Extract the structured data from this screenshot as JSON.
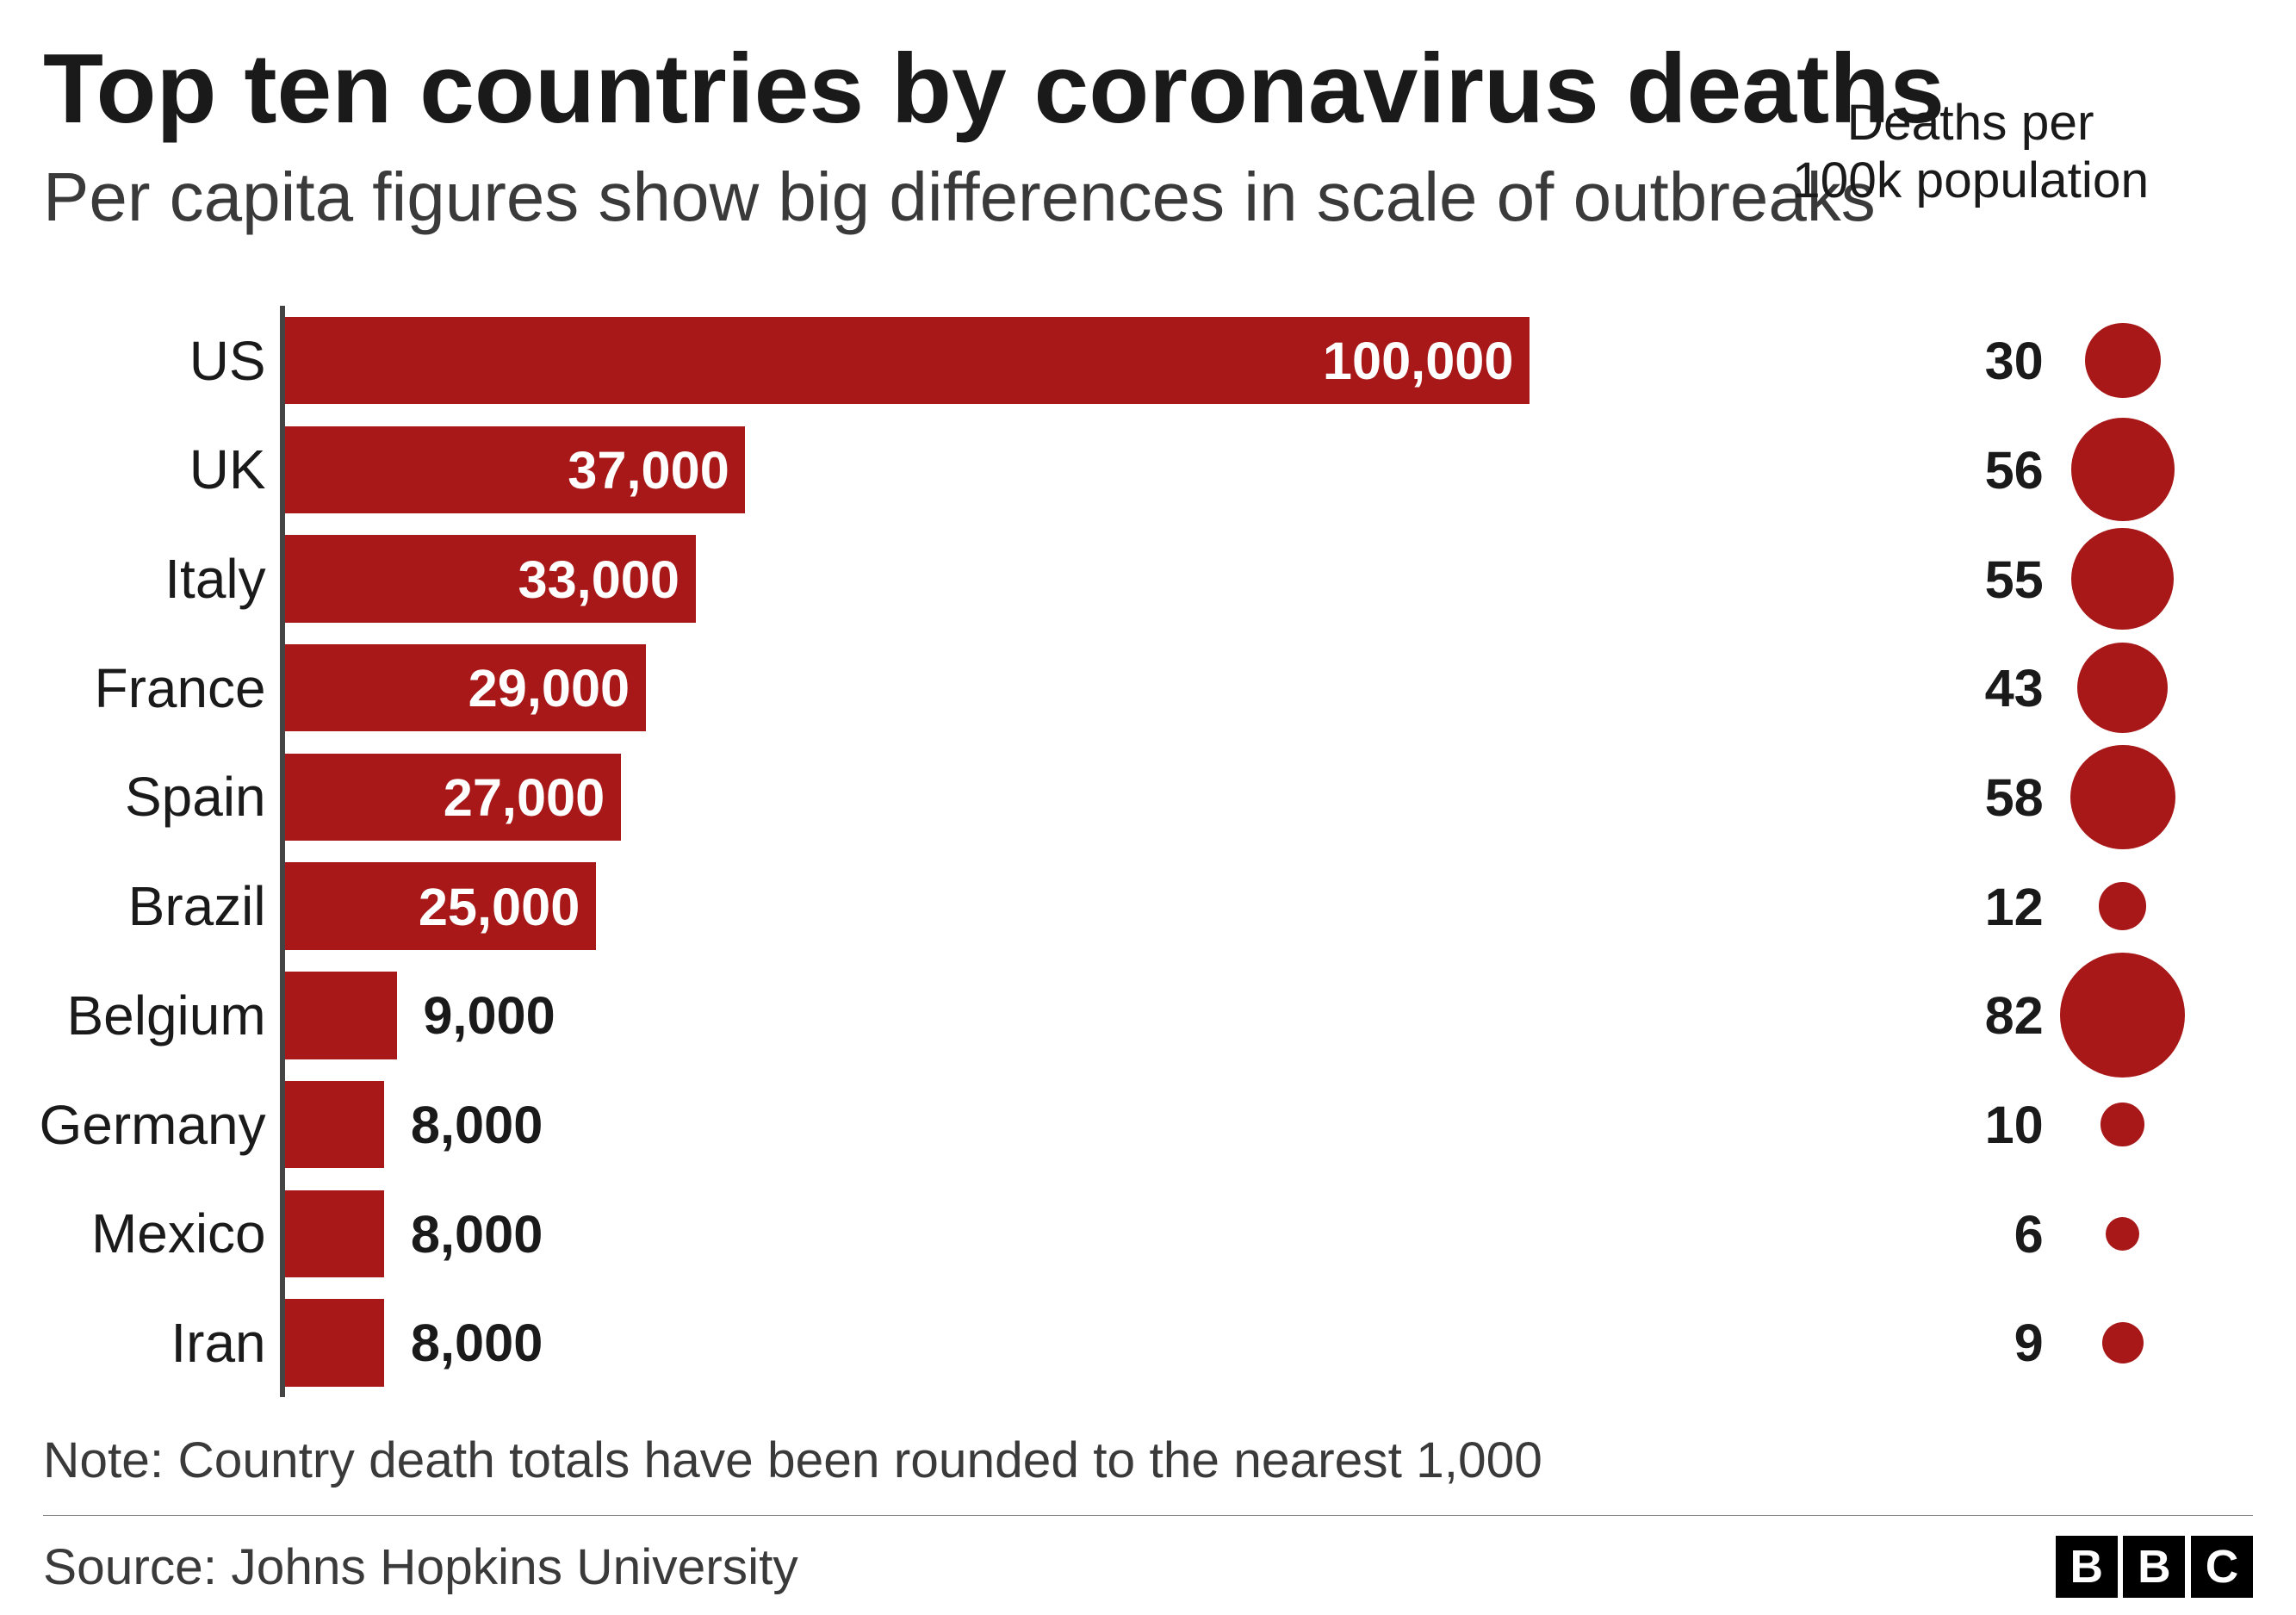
{
  "chart": {
    "type": "bar+bubble",
    "title": "Top ten countries by coronavirus deaths",
    "subtitle": "Per capita figures show big differences in scale of outbreaks",
    "per_capita_header_line1": "Deaths per",
    "per_capita_header_line2": "100k population",
    "note": "Note: Country death totals have been rounded to the nearest 1,000",
    "source": "Source: Johns Hopkins University",
    "background_color": "#ffffff",
    "text_color": "#1a1a1a",
    "axis_color": "#444444",
    "bar_color": "#a81818",
    "dot_color": "#a81818",
    "bar_value_color_inside": "#ffffff",
    "bar_value_color_outside": "#1a1a1a",
    "title_fontsize_em": 4.3,
    "subtitle_fontsize_em": 3.0,
    "label_fontsize_em": 2.4,
    "value_fontsize_em": 2.3,
    "bar_max_value": 100000,
    "bar_full_width_pct": 86,
    "dot_area_scale": 0.3,
    "rows": [
      {
        "country": "US",
        "deaths": 100000,
        "deaths_label": "100,000",
        "per_capita": 30,
        "value_inside": true
      },
      {
        "country": "UK",
        "deaths": 37000,
        "deaths_label": "37,000",
        "per_capita": 56,
        "value_inside": true
      },
      {
        "country": "Italy",
        "deaths": 33000,
        "deaths_label": "33,000",
        "per_capita": 55,
        "value_inside": true
      },
      {
        "country": "France",
        "deaths": 29000,
        "deaths_label": "29,000",
        "per_capita": 43,
        "value_inside": true
      },
      {
        "country": "Spain",
        "deaths": 27000,
        "deaths_label": "27,000",
        "per_capita": 58,
        "value_inside": true
      },
      {
        "country": "Brazil",
        "deaths": 25000,
        "deaths_label": "25,000",
        "per_capita": 12,
        "value_inside": true
      },
      {
        "country": "Belgium",
        "deaths": 9000,
        "deaths_label": "9,000",
        "per_capita": 82,
        "value_inside": false
      },
      {
        "country": "Germany",
        "deaths": 8000,
        "deaths_label": "8,000",
        "per_capita": 10,
        "value_inside": false
      },
      {
        "country": "Mexico",
        "deaths": 8000,
        "deaths_label": "8,000",
        "per_capita": 6,
        "value_inside": false
      },
      {
        "country": "Iran",
        "deaths": 8000,
        "deaths_label": "8,000",
        "per_capita": 9,
        "value_inside": false
      }
    ],
    "logo": {
      "letters": [
        "B",
        "B",
        "C"
      ],
      "box_bg": "#000000",
      "box_fg": "#ffffff"
    }
  }
}
